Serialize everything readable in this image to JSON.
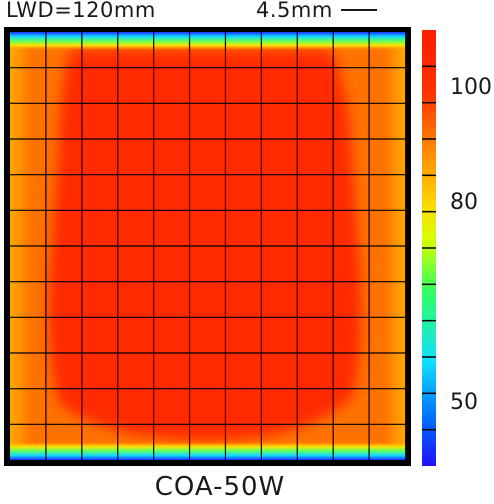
{
  "header": {
    "left_label": "LWD=120mm",
    "right_label": "4.5mm"
  },
  "footer": {
    "label": "COA-50W"
  },
  "chart_data": {
    "type": "heatmap",
    "title": "COA-50W",
    "colorbar": {
      "ticks": [
        50,
        80,
        100
      ],
      "range": [
        40,
        108
      ],
      "colormap": [
        "#1e10ff",
        "#0077ff",
        "#10e0ff",
        "#30ff60",
        "#d8ff00",
        "#ffd800",
        "#ff8a00",
        "#ff3000",
        "#ff1e00"
      ]
    },
    "grid": {
      "rows": 12,
      "cols": 11,
      "visible": true
    },
    "regions": {
      "center_value": 104,
      "side_value": 95,
      "corner_value": 92,
      "top_edge_value": 55,
      "bottom_edge_value": 55
    }
  }
}
